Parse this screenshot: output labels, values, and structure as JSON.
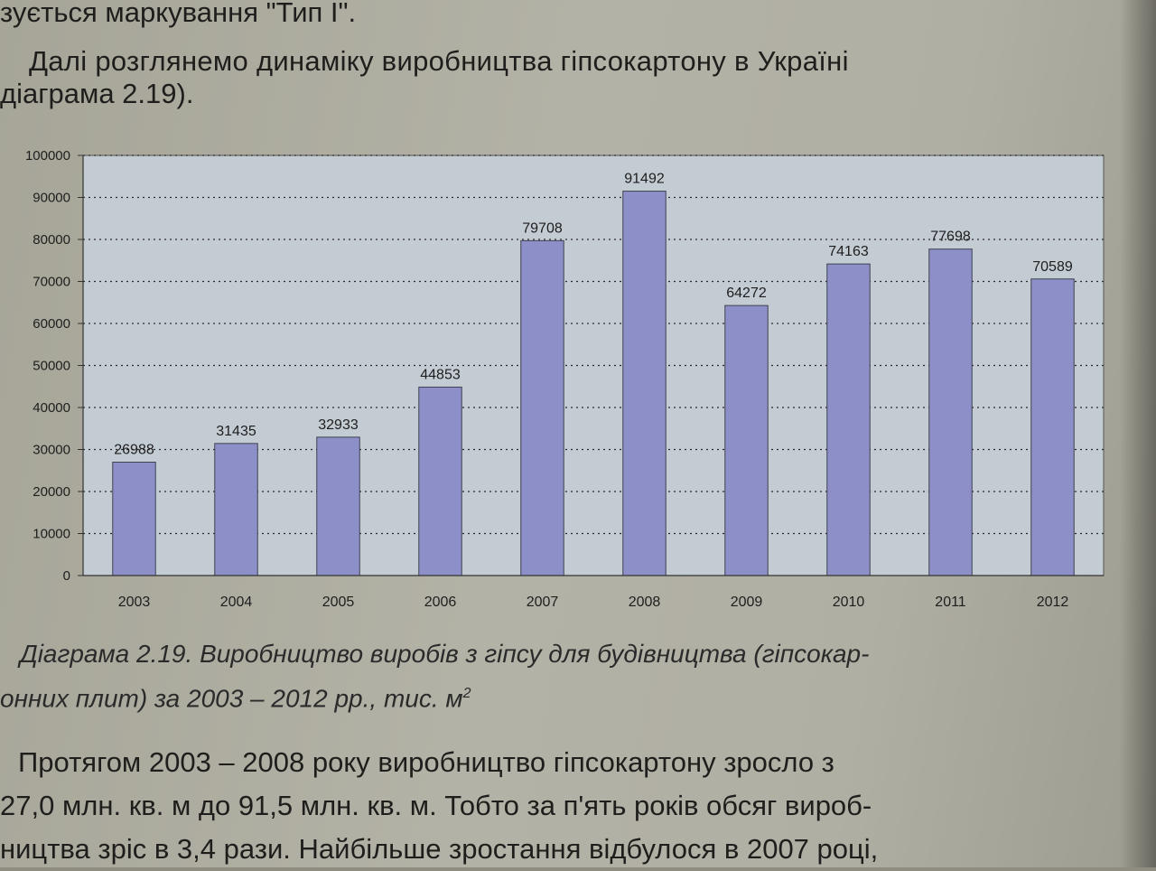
{
  "text": {
    "top_line": "зується маркування \"Тип І\".",
    "intro_1": "Далі розглянемо динаміку виробництва гіпсокартону в Україні",
    "intro_2": "діаграма 2.19).",
    "body_1": "Протягом 2003 – 2008 року виробництво гіпсокартону зросло з",
    "body_2": "27,0 млн. кв. м до 91,5 млн. кв. м. Тобто за п'ять років обсяг вироб-",
    "body_3": "ництва зріс в 3,4 рази. Найбільше зростання відбулося в 2007 році,"
  },
  "caption": {
    "line1": "Діаграма 2.19. Виробництво виробів з гіпсу для будівництва (гіпсокар-",
    "line2": "онних плит) за 2003 – 2012 рр., тис. м",
    "sup": "2"
  },
  "colors": {
    "plot_bg": "#c3cbd3",
    "bar": "#8d90c8",
    "bar_stroke": "#3f4150",
    "text": "#1e1e1e"
  },
  "chart_data": {
    "type": "bar",
    "categories": [
      "2003",
      "2004",
      "2005",
      "2006",
      "2007",
      "2008",
      "2009",
      "2010",
      "2011",
      "2012"
    ],
    "values": [
      26988,
      31435,
      32933,
      44853,
      79708,
      91492,
      64272,
      74163,
      77698,
      70589
    ],
    "ylim": [
      0,
      100000
    ],
    "yticks": [
      "0",
      "10000",
      "20000",
      "30000",
      "40000",
      "50000",
      "60000",
      "70000",
      "80000",
      "90000",
      "100000"
    ],
    "grid": "horizontal dotted",
    "data_labels": true,
    "legend": "none"
  }
}
